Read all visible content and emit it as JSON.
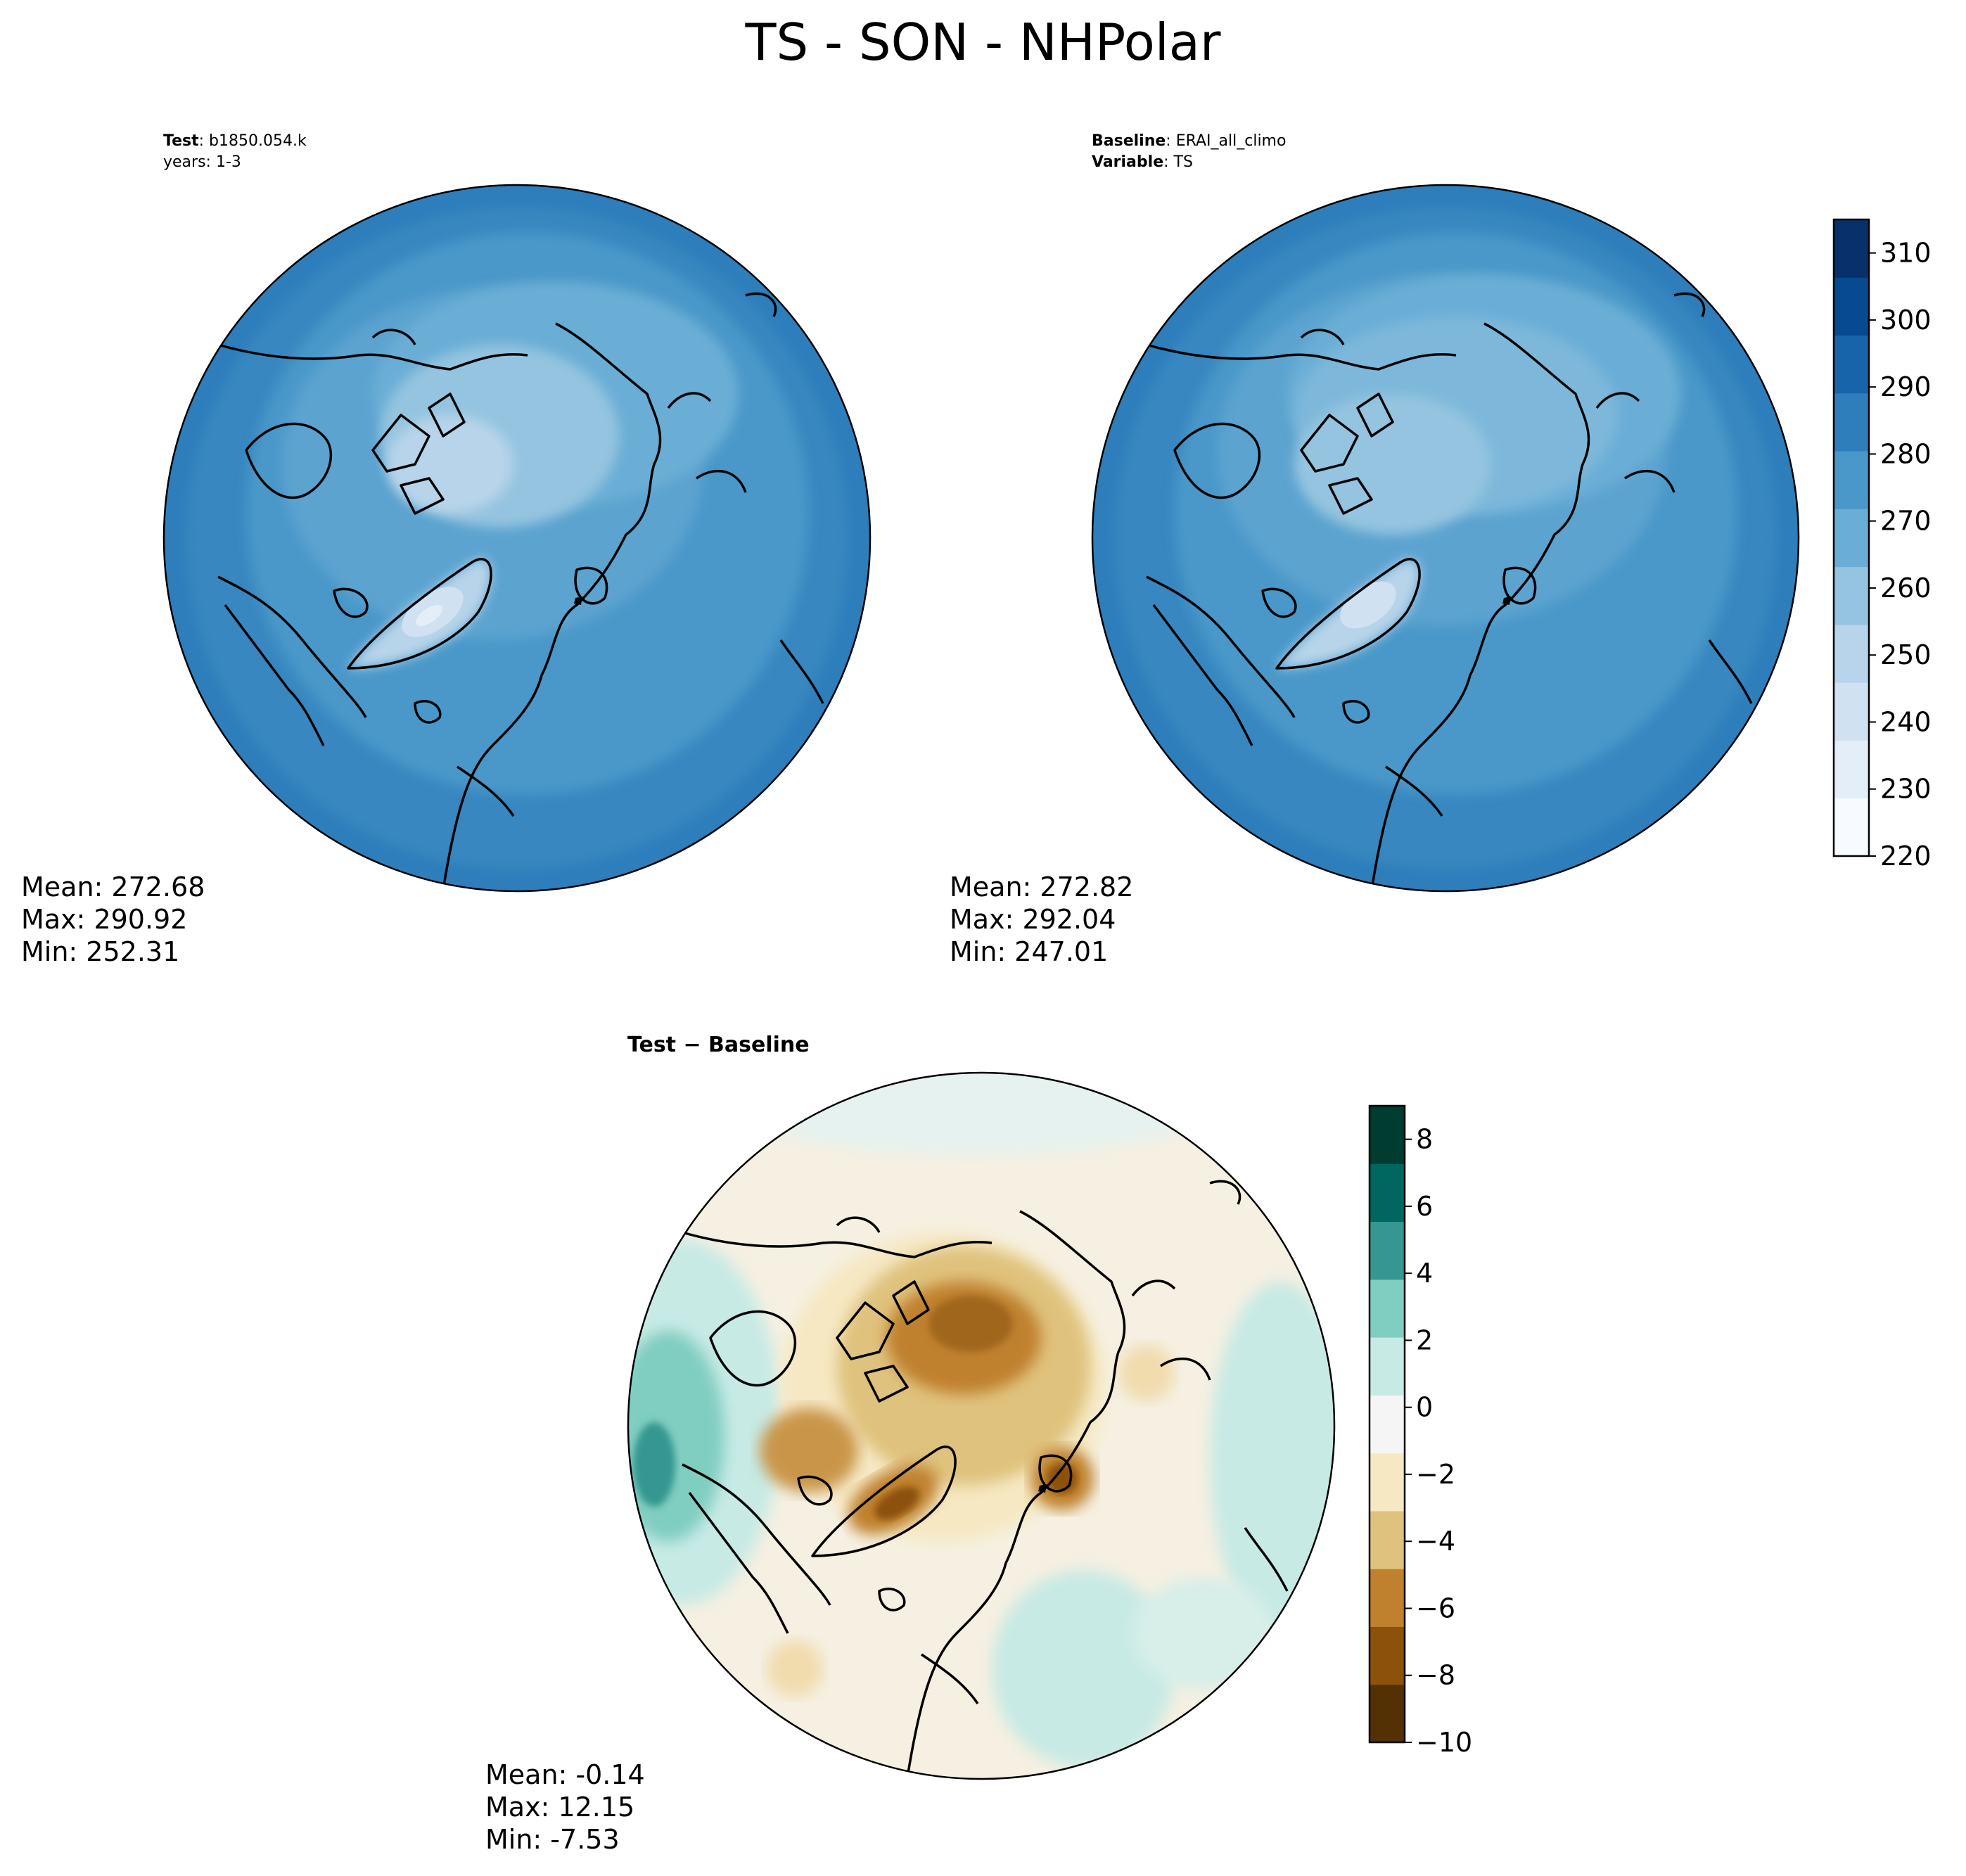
{
  "figure": {
    "title": "TS - SON - NHPolar"
  },
  "panels": {
    "test": {
      "label_bold": "Test",
      "label_value": ": b1850.054.k",
      "subtitle": "years: 1-3",
      "mean": "Mean: 272.68",
      "max": "Max: 290.92",
      "min": "Min: 252.31"
    },
    "baseline": {
      "label_bold": "Baseline",
      "label_value": ": ERAI_all_climo",
      "var_bold": "Variable",
      "var_value": ": TS",
      "mean": "Mean: 272.82",
      "max": "Max: 292.04",
      "min": "Min: 247.01"
    },
    "diff": {
      "title": "Test − Baseline",
      "mean": "Mean: -0.14",
      "max": "Max: 12.15",
      "min": "Min: -7.53"
    }
  },
  "colorbars": {
    "absolute": {
      "ticks": [
        "220",
        "230",
        "240",
        "250",
        "260",
        "270",
        "280",
        "290",
        "300",
        "310"
      ],
      "tick_values": [
        220,
        230,
        240,
        250,
        260,
        270,
        280,
        290,
        300,
        310
      ],
      "range": [
        220,
        315
      ],
      "colors": [
        "#f7fbff",
        "#e3eef9",
        "#d0e1f2",
        "#b7d4ea",
        "#94c4df",
        "#6aaed6",
        "#4a98c9",
        "#2e7ebc",
        "#1764ab",
        "#084a91",
        "#08306b"
      ]
    },
    "difference": {
      "ticks": [
        "−10",
        "−8",
        "−6",
        "−4",
        "−2",
        "0",
        "2",
        "4",
        "6",
        "8"
      ],
      "tick_values": [
        -10,
        -8,
        -6,
        -4,
        -2,
        0,
        2,
        4,
        6,
        8
      ],
      "range": [
        -10,
        9
      ],
      "colors": [
        "#543005",
        "#8c510a",
        "#bf812d",
        "#dfc27d",
        "#f6e8c3",
        "#f5f5f5",
        "#c7eae5",
        "#80cdc1",
        "#35978f",
        "#01665e",
        "#003c30"
      ]
    }
  }
}
